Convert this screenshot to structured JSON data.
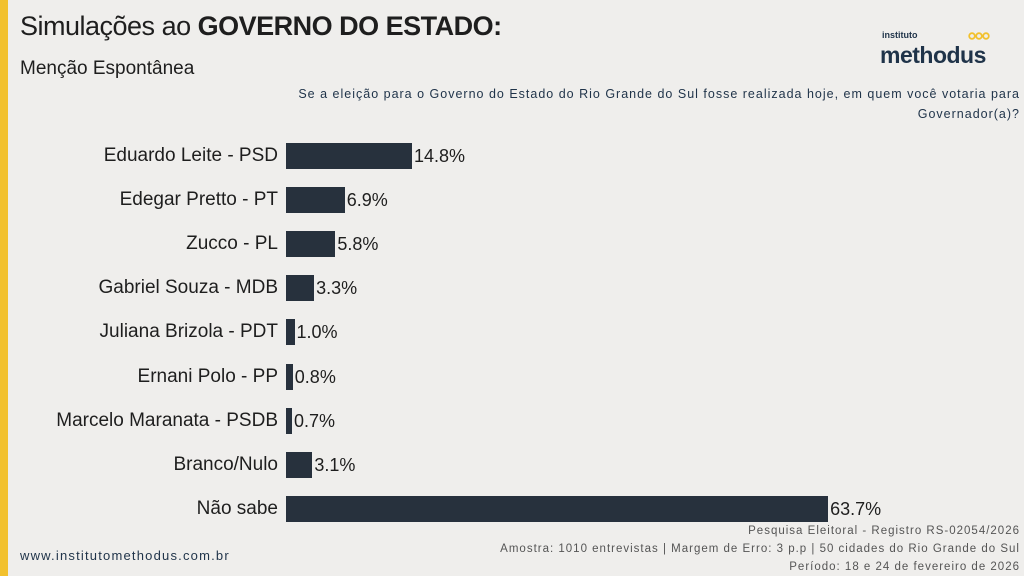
{
  "header": {
    "title_prefix": "Simulações ao ",
    "title_bold": "GOVERNO DO ESTADO:",
    "subtitle": "Menção Espontânea"
  },
  "logo": {
    "small": "instituto",
    "big": "methodus"
  },
  "question": "Se a eleição para o Governo do Estado do Rio Grande do Sul fosse realizada hoje, em quem você votaria para Governador(a)?",
  "colors": {
    "bar": "#27313d",
    "accent": "#f2c12e",
    "brand": "#1f3349"
  },
  "chart_data": {
    "type": "bar",
    "orientation": "horizontal",
    "categories": [
      "Eduardo Leite - PSD",
      "Edegar Pretto - PT",
      "Zucco - PL",
      "Gabriel Souza - MDB",
      "Juliana Brizola - PDT",
      "Ernani Polo - PP",
      "Marcelo Maranata - PSDB",
      "Branco/Nulo",
      "Não sabe"
    ],
    "values": [
      14.8,
      6.9,
      5.8,
      3.3,
      1.0,
      0.8,
      0.7,
      3.1,
      63.7
    ],
    "labels": [
      "14.8%",
      "6.9%",
      "5.8%",
      "3.3%",
      "1.0%",
      "0.8%",
      "0.7%",
      "3.1%",
      "63.7%"
    ],
    "title": "Simulações ao GOVERNO DO ESTADO:",
    "xlabel": "",
    "ylabel": "",
    "xlim": [
      0,
      100
    ],
    "grid": false
  },
  "footer": {
    "url": "www.institutomethodus.com.br",
    "registro": "Pesquisa Eleitoral - Registro RS-02054/2026",
    "amostra": "Amostra: 1010 entrevistas | Margem de Erro: 3 p.p | 50 cidades do Rio Grande do Sul",
    "periodo": "Período: 18 e 24 de fevereiro de 2026"
  }
}
